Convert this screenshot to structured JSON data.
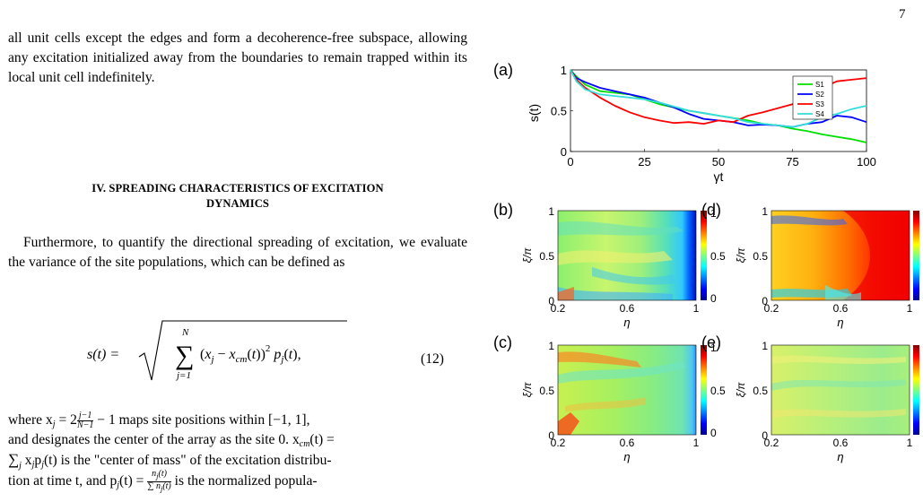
{
  "page_number": "7",
  "para1": "all unit cells except the edges and form a decoherence-free subspace, allowing any excitation initialized away from the boundaries to remain trapped within its local unit cell indefinitely.",
  "section_heading_line1": "IV.   SPREADING CHARACTERISTICS OF EXCITATION",
  "section_heading_line2": "DYNAMICS",
  "para2": "Furthermore, to quantify the directional spreading of excitation, we evaluate the variance of the site populations, which can be defined as",
  "equation": {
    "lhs": "s(t) =",
    "sum_upper": "N",
    "sum_lower": "j=1",
    "body": "(x",
    "number": "(12)"
  },
  "para3": {
    "l1_a": "where x",
    "l1_b": " = 2",
    "l1_c": " − 1 maps site positions within [−1, 1],",
    "l2_a": "and designates the center of the array as the site 0. x",
    "l2_b": "(t) =",
    "l3_a": " x",
    "l3_b": "p",
    "l3_c": "(t) is the \"center of mass\" of the excitation distribu-",
    "l4_a": "tion at time t, and p",
    "l4_b": "(t) = ",
    "l4_c": " is the normalized popula-"
  },
  "figure": {
    "panel_labels": [
      "(a)",
      "(b)",
      "(c)",
      "(d)",
      "(e)"
    ],
    "colorbar_ticks": [
      "1",
      "0.5",
      "0"
    ],
    "heatmap_xticks": [
      "0.2",
      "0.6",
      "1"
    ],
    "heatmap_yticks": [
      "1",
      "0.5",
      "0"
    ],
    "heatmap_xlabel": "η",
    "heatmap_ylabel": "ξ/π",
    "colors": {
      "S1": "#00e000",
      "S2": "#0000ff",
      "S3": "#ff0000",
      "S4": "#33dddd"
    }
  },
  "chart_data": {
    "type": "line",
    "xlabel": "γt",
    "ylabel": "s(t)",
    "xlim": [
      0,
      100
    ],
    "ylim": [
      0,
      1
    ],
    "xticks": [
      "0",
      "25",
      "50",
      "75",
      "100"
    ],
    "yticks": [
      "0",
      "0.5",
      "1"
    ],
    "legend": "top-right",
    "x": [
      0,
      2,
      5,
      10,
      15,
      20,
      25,
      30,
      35,
      40,
      45,
      50,
      55,
      60,
      65,
      70,
      75,
      80,
      85,
      90,
      95,
      100
    ],
    "series": [
      {
        "name": "S1",
        "values": [
          1.0,
          0.92,
          0.82,
          0.74,
          0.72,
          0.7,
          0.64,
          0.58,
          0.54,
          0.5,
          0.47,
          0.44,
          0.41,
          0.38,
          0.34,
          0.32,
          0.28,
          0.25,
          0.21,
          0.18,
          0.15,
          0.11
        ]
      },
      {
        "name": "S2",
        "values": [
          1.0,
          0.9,
          0.85,
          0.78,
          0.74,
          0.7,
          0.66,
          0.6,
          0.54,
          0.46,
          0.4,
          0.38,
          0.36,
          0.32,
          0.33,
          0.32,
          0.3,
          0.34,
          0.36,
          0.44,
          0.42,
          0.36
        ]
      },
      {
        "name": "S3",
        "values": [
          1.0,
          0.88,
          0.78,
          0.66,
          0.56,
          0.48,
          0.42,
          0.38,
          0.35,
          0.36,
          0.34,
          0.38,
          0.36,
          0.44,
          0.48,
          0.53,
          0.58,
          0.66,
          0.78,
          0.86,
          0.88,
          0.9
        ]
      },
      {
        "name": "S4",
        "values": [
          1.0,
          0.86,
          0.76,
          0.7,
          0.68,
          0.66,
          0.64,
          0.6,
          0.55,
          0.5,
          0.47,
          0.44,
          0.41,
          0.36,
          0.34,
          0.32,
          0.3,
          0.34,
          0.42,
          0.46,
          0.52,
          0.56
        ]
      }
    ]
  }
}
